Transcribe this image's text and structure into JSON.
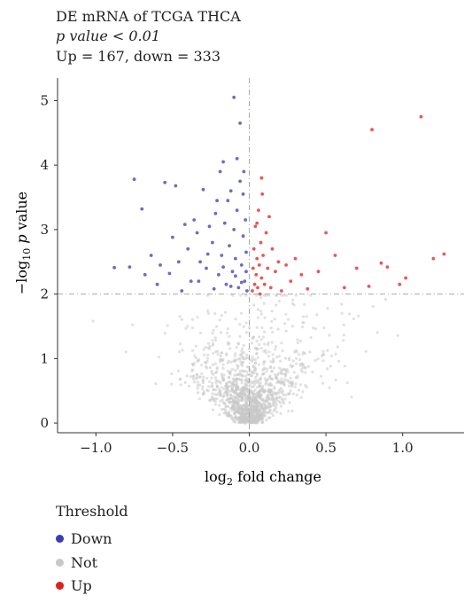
{
  "chart_data": {
    "type": "scatter",
    "title_lines": [
      "DE mRNA of TCGA THCA",
      "p value < 0.01",
      "Up = 167, down = 333"
    ],
    "xlabel": "log2 fold change",
    "ylabel": "-log10 p value",
    "xlim": [
      -1.25,
      1.4
    ],
    "ylim": [
      -0.15,
      5.35
    ],
    "xticks": [
      -1.0,
      -0.5,
      0.0,
      0.5,
      1.0
    ],
    "xtick_labels": [
      "−1.0",
      "−0.5",
      "0.0",
      "0.5",
      "1.0"
    ],
    "yticks": [
      0,
      1,
      2,
      3,
      4,
      5
    ],
    "ytick_labels": [
      "0",
      "1",
      "2",
      "3",
      "4",
      "5"
    ],
    "threshold_y": 2,
    "threshold_x": 0,
    "grid": false,
    "legend": {
      "title": "Threshold",
      "position": "bottom",
      "entries": [
        {
          "name": "Down",
          "color": "#3b3bb3"
        },
        {
          "name": "Not",
          "color": "#c8c8c8"
        },
        {
          "name": "Up",
          "color": "#e0201c"
        }
      ]
    },
    "series": [
      {
        "name": "Down",
        "color": "#3b3bb3",
        "points": [
          [
            -0.88,
            2.41
          ],
          [
            -0.78,
            2.42
          ],
          [
            -0.75,
            3.78
          ],
          [
            -0.7,
            3.32
          ],
          [
            -0.68,
            2.3
          ],
          [
            -0.64,
            2.6
          ],
          [
            -0.6,
            2.15
          ],
          [
            -0.58,
            2.45
          ],
          [
            -0.55,
            3.73
          ],
          [
            -0.52,
            2.32
          ],
          [
            -0.5,
            2.88
          ],
          [
            -0.48,
            3.68
          ],
          [
            -0.46,
            2.5
          ],
          [
            -0.44,
            2.05
          ],
          [
            -0.42,
            3.08
          ],
          [
            -0.4,
            2.7
          ],
          [
            -0.38,
            2.2
          ],
          [
            -0.36,
            3.15
          ],
          [
            -0.34,
            2.95
          ],
          [
            -0.32,
            2.5
          ],
          [
            -0.3,
            3.62
          ],
          [
            -0.28,
            2.4
          ],
          [
            -0.26,
            3.05
          ],
          [
            -0.24,
            2.8
          ],
          [
            -0.22,
            3.25
          ],
          [
            -0.2,
            2.3
          ],
          [
            -0.19,
            3.9
          ],
          [
            -0.18,
            2.6
          ],
          [
            -0.16,
            3.1
          ],
          [
            -0.15,
            2.15
          ],
          [
            -0.14,
            3.45
          ],
          [
            -0.13,
            2.75
          ],
          [
            -0.12,
            3.6
          ],
          [
            -0.11,
            2.35
          ],
          [
            -0.1,
            3.0
          ],
          [
            -0.09,
            2.55
          ],
          [
            -0.08,
            3.3
          ],
          [
            -0.07,
            2.1
          ],
          [
            -0.06,
            3.75
          ],
          [
            -0.05,
            2.45
          ],
          [
            -0.04,
            2.9
          ],
          [
            -0.035,
            3.9
          ],
          [
            -0.03,
            2.2
          ],
          [
            -0.025,
            3.15
          ],
          [
            -0.02,
            2.65
          ],
          [
            -0.015,
            2.05
          ],
          [
            -0.02,
            2.35
          ],
          [
            -0.05,
            2.18
          ],
          [
            -0.09,
            2.28
          ],
          [
            -0.12,
            2.12
          ],
          [
            -0.17,
            2.42
          ],
          [
            -0.23,
            2.08
          ],
          [
            -0.27,
            2.62
          ],
          [
            -0.33,
            2.2
          ],
          [
            -0.08,
            4.1
          ],
          [
            -0.06,
            4.65
          ],
          [
            -0.1,
            5.05
          ],
          [
            -0.17,
            4.05
          ],
          [
            -0.21,
            3.45
          ],
          [
            -0.04,
            3.55
          ]
        ]
      },
      {
        "name": "Up",
        "color": "#e0201c",
        "points": [
          [
            0.02,
            2.05
          ],
          [
            0.025,
            2.4
          ],
          [
            0.03,
            2.7
          ],
          [
            0.035,
            2.15
          ],
          [
            0.04,
            3.05
          ],
          [
            0.045,
            2.3
          ],
          [
            0.05,
            2.55
          ],
          [
            0.055,
            2.1
          ],
          [
            0.06,
            3.3
          ],
          [
            0.065,
            2.45
          ],
          [
            0.07,
            2.0
          ],
          [
            0.075,
            2.8
          ],
          [
            0.08,
            2.25
          ],
          [
            0.085,
            3.55
          ],
          [
            0.09,
            2.6
          ],
          [
            0.1,
            2.15
          ],
          [
            0.11,
            2.95
          ],
          [
            0.12,
            2.4
          ],
          [
            0.13,
            3.2
          ],
          [
            0.14,
            2.1
          ],
          [
            0.15,
            2.7
          ],
          [
            0.17,
            2.35
          ],
          [
            0.19,
            2.5
          ],
          [
            0.21,
            2.05
          ],
          [
            0.24,
            2.45
          ],
          [
            0.27,
            2.2
          ],
          [
            0.3,
            2.55
          ],
          [
            0.34,
            2.3
          ],
          [
            0.08,
            3.8
          ],
          [
            0.05,
            3.1
          ],
          [
            0.38,
            2.08
          ],
          [
            0.45,
            2.35
          ],
          [
            0.5,
            2.95
          ],
          [
            0.56,
            2.6
          ],
          [
            0.62,
            2.1
          ],
          [
            0.7,
            2.4
          ],
          [
            0.78,
            2.12
          ],
          [
            0.8,
            4.55
          ],
          [
            0.86,
            2.48
          ],
          [
            0.9,
            2.42
          ],
          [
            0.98,
            2.15
          ],
          [
            1.02,
            2.25
          ],
          [
            1.12,
            4.75
          ],
          [
            1.2,
            2.55
          ],
          [
            1.27,
            2.62
          ]
        ]
      }
    ]
  }
}
